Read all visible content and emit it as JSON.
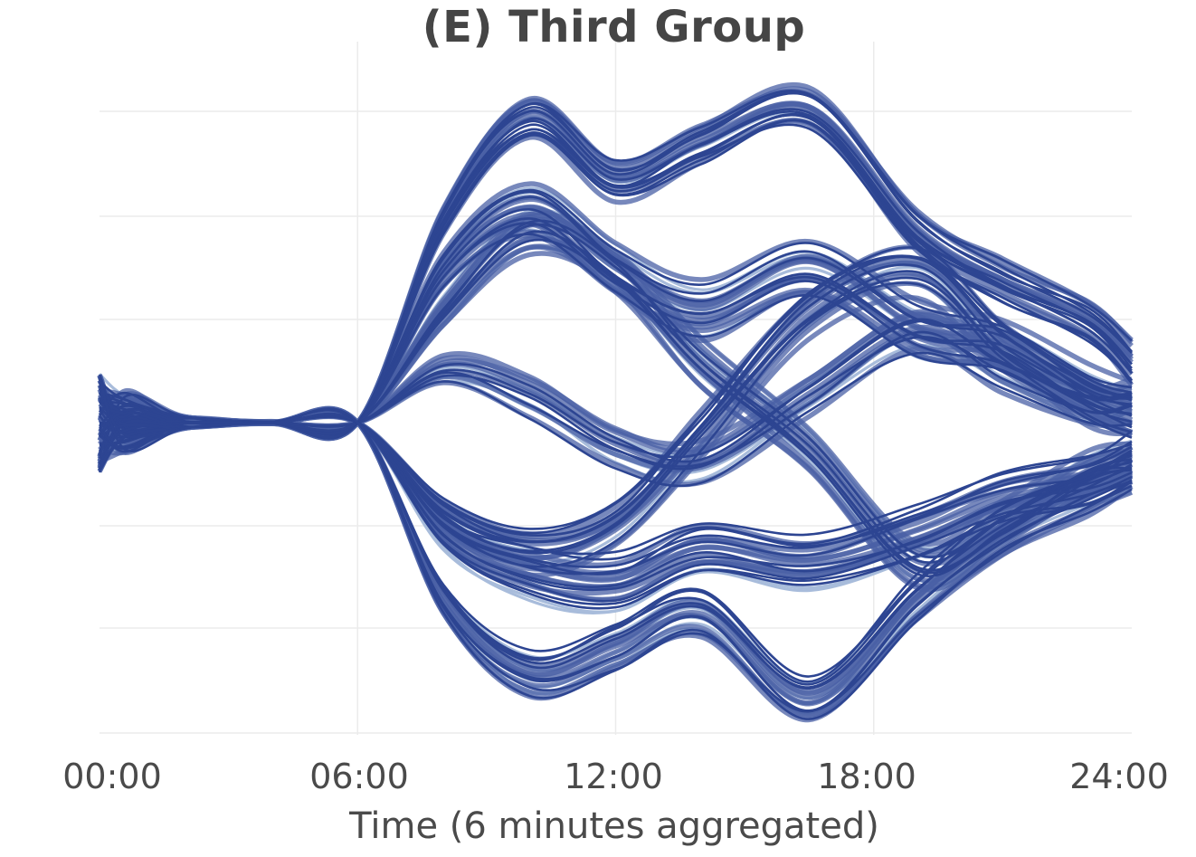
{
  "chart_data": {
    "type": "line",
    "title": "(E) Third Group",
    "xlabel": "Time (6 minutes aggregated)",
    "ylabel": "",
    "x_tick_labels": [
      "00:00",
      "06:00",
      "12:00",
      "18:00",
      "24:00"
    ],
    "x_range_hours": [
      0,
      24
    ],
    "y_tick_labels": [],
    "grid": true,
    "legend": null,
    "description": "Stream/ribbon plot of many smoothed individual trajectories; narrow bundle from ~01:00 to 06:00, fanning out after 06:00 into upper and lower bundles that cross around 13:00-20:00 and converge into two bands near 24:00.",
    "colors": {
      "dark_line": "#2d4592",
      "mid_line": "#4a60a6",
      "light_line": "#a8bcdb",
      "grid": "#ebebeb",
      "text": "#454545"
    },
    "anchor_hours": [
      0,
      0.6,
      2,
      4,
      6,
      8,
      10,
      12,
      14,
      16.5,
      19,
      21,
      23,
      24
    ],
    "bundles": [
      {
        "name": "upper-high",
        "count": 22,
        "spread": 45,
        "y": [
          0.05,
          0.02,
          0.01,
          0.0,
          0.0,
          0.4,
          0.6,
          0.48,
          0.55,
          0.62,
          0.38,
          0.28,
          0.2,
          0.12
        ]
      },
      {
        "name": "upper-mid",
        "count": 22,
        "spread": 55,
        "y": [
          -0.03,
          0.01,
          0.0,
          0.0,
          0.0,
          0.3,
          0.42,
          0.3,
          0.22,
          0.3,
          0.18,
          0.15,
          0.05,
          0.02
        ]
      },
      {
        "name": "upper-cross-down",
        "count": 18,
        "spread": 45,
        "y": [
          0.04,
          0.02,
          0.0,
          0.0,
          0.0,
          0.22,
          0.38,
          0.3,
          0.12,
          -0.05,
          -0.28,
          -0.2,
          -0.1,
          -0.08
        ]
      },
      {
        "name": "mid-up",
        "count": 16,
        "spread": 40,
        "y": [
          -0.05,
          -0.02,
          0.0,
          0.0,
          0.0,
          0.1,
          0.05,
          -0.05,
          -0.08,
          0.05,
          0.18,
          0.1,
          0.03,
          0.04
        ]
      },
      {
        "name": "lower-cross-up",
        "count": 18,
        "spread": 45,
        "y": [
          -0.04,
          -0.02,
          0.0,
          0.0,
          0.0,
          -0.18,
          -0.25,
          -0.2,
          -0.02,
          0.22,
          0.3,
          0.15,
          0.05,
          0.02
        ]
      },
      {
        "name": "lower-mid",
        "count": 22,
        "spread": 55,
        "y": [
          0.03,
          -0.01,
          0.0,
          0.0,
          0.0,
          -0.22,
          -0.3,
          -0.32,
          -0.25,
          -0.28,
          -0.22,
          -0.15,
          -0.12,
          -0.08
        ]
      },
      {
        "name": "lower-low",
        "count": 22,
        "spread": 45,
        "y": [
          -0.06,
          -0.02,
          -0.01,
          0.0,
          0.0,
          -0.35,
          -0.5,
          -0.45,
          -0.38,
          -0.55,
          -0.35,
          -0.22,
          -0.14,
          -0.1
        ]
      }
    ]
  }
}
